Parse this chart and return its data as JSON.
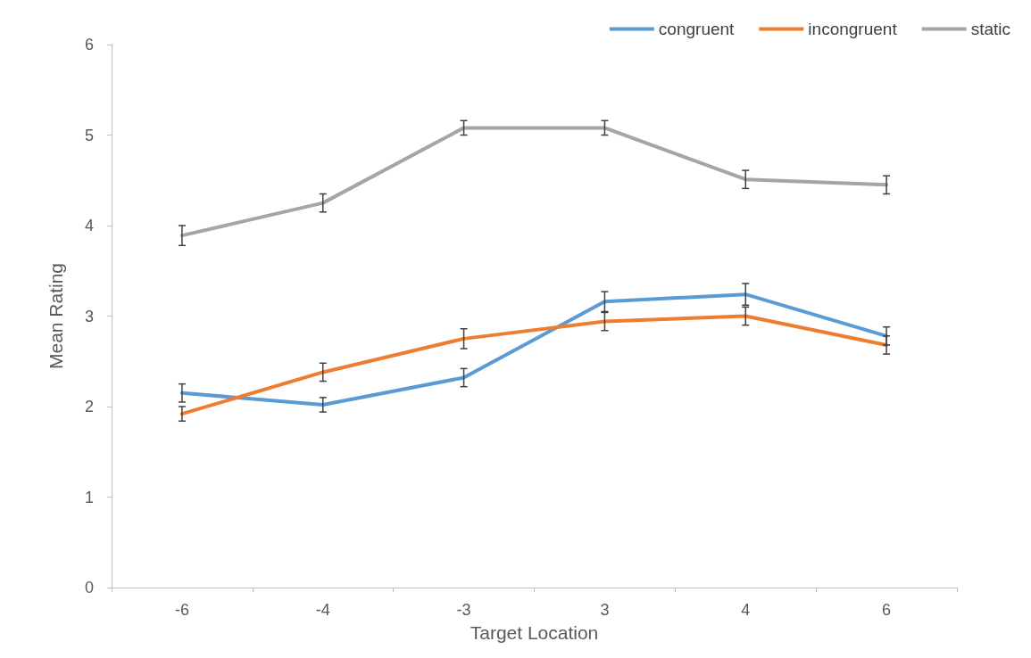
{
  "chart_data": {
    "type": "line",
    "xlabel": "Target Location",
    "ylabel": "Mean Rating",
    "categories": [
      "-6",
      "-4",
      "-3",
      "3",
      "4",
      "6"
    ],
    "series": [
      {
        "name": "congruent",
        "color": "#5b9bd5",
        "values": [
          2.15,
          2.02,
          2.32,
          3.16,
          3.24,
          2.78
        ],
        "errors": [
          0.1,
          0.08,
          0.1,
          0.11,
          0.12,
          0.1
        ]
      },
      {
        "name": "incongruent",
        "color": "#ed7d31",
        "values": [
          1.92,
          2.38,
          2.75,
          2.94,
          3.0,
          2.68
        ],
        "errors": [
          0.08,
          0.1,
          0.11,
          0.1,
          0.1,
          0.1
        ]
      },
      {
        "name": "static",
        "color": "#a5a5a5",
        "values": [
          3.89,
          4.25,
          5.08,
          5.08,
          4.51,
          4.45
        ],
        "errors": [
          0.11,
          0.1,
          0.08,
          0.08,
          0.1,
          0.1
        ]
      }
    ],
    "ylim": [
      0,
      6
    ],
    "yticks": [
      0,
      1,
      2,
      3,
      4,
      5,
      6
    ],
    "grid": false,
    "legend": "top right",
    "marker": "none",
    "line_style": "solid"
  }
}
